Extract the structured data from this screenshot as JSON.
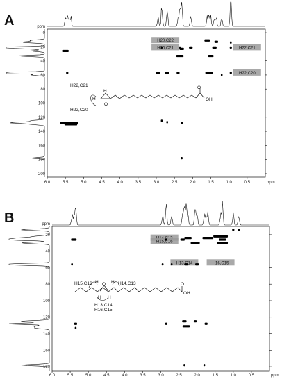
{
  "figure": {
    "panels": [
      "A",
      "B"
    ],
    "axis_unit": "ppm",
    "struct_labels_a": {
      "h22c21": "H22,C21",
      "h22c20": "H22,C20",
      "h": "H",
      "o": "O",
      "oh": "OH"
    },
    "struct_labels_b": {
      "h15c16": "H15,C16",
      "h14c13": "H14,C13",
      "h13c14": "H13,C14",
      "h16c15": "H16,C15",
      "h": "H",
      "o": "O",
      "oh": "OH"
    }
  },
  "chart_data": [
    {
      "type": "scatter",
      "panel": "A",
      "title": "",
      "xlabel": "ppm",
      "ylabel": "ppm",
      "xlim": [
        6.0,
        0.0
      ],
      "ylim": [
        -5,
        205
      ],
      "x_ticks": [
        "6.0",
        "5.5",
        "5.0",
        "4.5",
        "4.0",
        "3.5",
        "3.0",
        "2.5",
        "2.0",
        "1.5",
        "1.0",
        "0.5"
      ],
      "y_ticks": [
        "0",
        "20",
        "40",
        "60",
        "80",
        "100",
        "120",
        "140",
        "160",
        "180",
        "200"
      ],
      "annotations": [
        {
          "text": "H20,C22",
          "x": 2.75,
          "y": 11
        },
        {
          "text": "H20,C21",
          "x": 2.75,
          "y": 21
        },
        {
          "text": "H22,C21",
          "x": 0.5,
          "y": 21
        },
        {
          "text": "H22,C20",
          "x": 0.5,
          "y": 57
        }
      ],
      "peaks": [
        {
          "x": 5.5,
          "y": 26,
          "w": 0.18
        },
        {
          "x": 5.45,
          "y": 57,
          "w": 0.06
        },
        {
          "x": 2.85,
          "y": 21,
          "w": 0.04
        },
        {
          "x": 2.35,
          "y": 21,
          "w": 0.05
        },
        {
          "x": 2.3,
          "y": 23,
          "w": 0.12
        },
        {
          "x": 2.35,
          "y": 33,
          "w": 0.2
        },
        {
          "x": 2.05,
          "y": 21,
          "w": 0.1
        },
        {
          "x": 1.6,
          "y": 11,
          "w": 0.15
        },
        {
          "x": 1.4,
          "y": 21,
          "w": 0.12
        },
        {
          "x": 1.5,
          "y": 33,
          "w": 0.15
        },
        {
          "x": 1.35,
          "y": 13,
          "w": 0.1
        },
        {
          "x": 0.95,
          "y": 21,
          "w": 0.06
        },
        {
          "x": 0.95,
          "y": 14,
          "w": 0.05
        },
        {
          "x": 0.95,
          "y": 57,
          "w": 0.06
        },
        {
          "x": 2.95,
          "y": 57,
          "w": 0.12
        },
        {
          "x": 2.7,
          "y": 57,
          "w": 0.12
        },
        {
          "x": 2.4,
          "y": 57,
          "w": 0.08
        },
        {
          "x": 1.55,
          "y": 57,
          "w": 0.2
        },
        {
          "x": 1.2,
          "y": 60,
          "w": 0.04
        },
        {
          "x": 5.4,
          "y": 128,
          "w": 0.5
        },
        {
          "x": 5.35,
          "y": 130,
          "w": 0.35
        },
        {
          "x": 2.85,
          "y": 125,
          "w": 0.04
        },
        {
          "x": 2.7,
          "y": 127,
          "w": 0.04
        },
        {
          "x": 2.3,
          "y": 128,
          "w": 0.06
        },
        {
          "x": 2.3,
          "y": 178,
          "w": 0.04
        }
      ]
    },
    {
      "type": "scatter",
      "panel": "B",
      "title": "",
      "xlabel": "ppm",
      "ylabel": "ppm",
      "xlim": [
        6.0,
        0.0
      ],
      "ylim": [
        10,
        185
      ],
      "x_ticks": [
        "6.0",
        "5.5",
        "5.0",
        "4.5",
        "4.0",
        "3.5",
        "3.0",
        "2.5",
        "2.0",
        "1.5",
        "1.0",
        "0.5"
      ],
      "y_ticks": [
        "20",
        "40",
        "60",
        "80",
        "100",
        "120",
        "140",
        "160",
        "180"
      ],
      "annotations": [
        {
          "text": "H14,C13",
          "x": 2.9,
          "y": 24
        },
        {
          "text": "H15,C16",
          "x": 2.9,
          "y": 28
        },
        {
          "text": "H13,C14",
          "x": 2.35,
          "y": 54
        },
        {
          "text": "H16,C15",
          "x": 1.35,
          "y": 54
        }
      ],
      "peaks": [
        {
          "x": 5.4,
          "y": 26,
          "w": 0.15
        },
        {
          "x": 5.45,
          "y": 56,
          "w": 0.05
        },
        {
          "x": 2.85,
          "y": 26,
          "w": 0.06
        },
        {
          "x": 2.4,
          "y": 26,
          "w": 0.12
        },
        {
          "x": 2.25,
          "y": 24,
          "w": 0.2
        },
        {
          "x": 2.05,
          "y": 30,
          "w": 0.25
        },
        {
          "x": 1.7,
          "y": 24,
          "w": 0.3
        },
        {
          "x": 1.35,
          "y": 22,
          "w": 0.4
        },
        {
          "x": 1.3,
          "y": 30,
          "w": 0.3
        },
        {
          "x": 1.0,
          "y": 14,
          "w": 0.06
        },
        {
          "x": 0.85,
          "y": 14,
          "w": 0.06
        },
        {
          "x": 1.3,
          "y": 26,
          "w": 0.2
        },
        {
          "x": 2.3,
          "y": 56,
          "w": 0.1
        },
        {
          "x": 2.0,
          "y": 56,
          "w": 0.1
        },
        {
          "x": 2.95,
          "y": 56,
          "w": 0.05
        },
        {
          "x": 2.7,
          "y": 56,
          "w": 0.04
        },
        {
          "x": 5.35,
          "y": 128,
          "w": 0.08
        },
        {
          "x": 5.35,
          "y": 133,
          "w": 0.04
        },
        {
          "x": 2.85,
          "y": 128,
          "w": 0.06
        },
        {
          "x": 2.35,
          "y": 125,
          "w": 0.12
        },
        {
          "x": 2.05,
          "y": 125,
          "w": 0.08
        },
        {
          "x": 1.75,
          "y": 128,
          "w": 0.08
        },
        {
          "x": 2.3,
          "y": 131,
          "w": 0.2
        },
        {
          "x": 2.35,
          "y": 178,
          "w": 0.04
        },
        {
          "x": 1.8,
          "y": 178,
          "w": 0.04
        }
      ]
    }
  ]
}
